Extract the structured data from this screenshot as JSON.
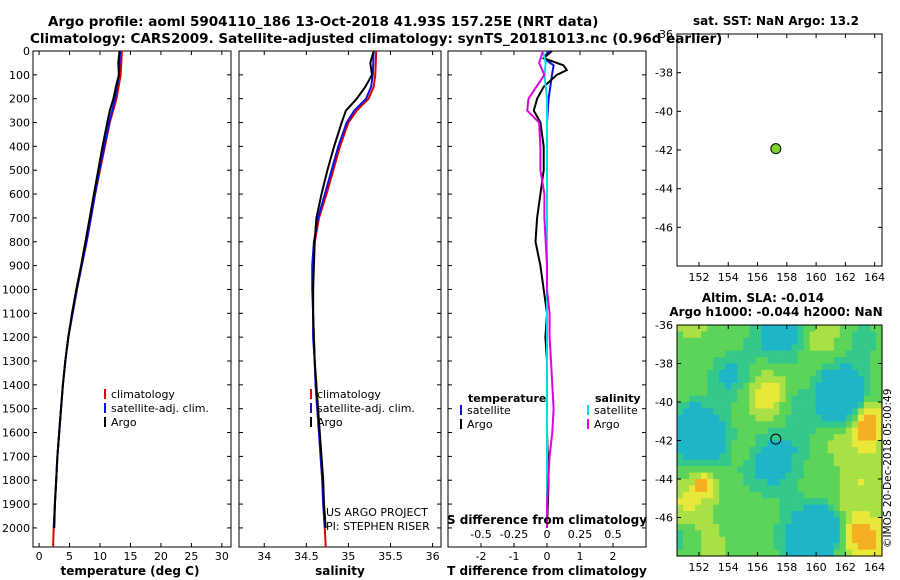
{
  "header": {
    "line1": "Argo profile: aoml 5904110_186 13-Oct-2018 41.93S 157.25E (NRT data)",
    "line2": "Climatology: CARS2009. Satellite-adjusted climatology: synTS_20181013.nc (0.96d earlier)"
  },
  "credits": {
    "project": "US ARGO PROJECT",
    "pi": "PI: STEPHEN RISER",
    "imos_stamp": "©IMOS 20-Dec-2018 05:00:49"
  },
  "colors": {
    "climatology": "#e00000",
    "satellite": "#1010e0",
    "argo": "#000000",
    "sal_satellite": "#00e0e0",
    "sal_argo": "#e000e0",
    "argo_marker": "#7fd22a"
  },
  "chart_data": [
    {
      "id": "temperature",
      "type": "line",
      "xlabel": "temperature (deg C)",
      "xlim": [
        -1,
        31.5
      ],
      "ylim": [
        2080,
        0
      ],
      "x_ticks": [
        0,
        5,
        10,
        15,
        20,
        25,
        30
      ],
      "x_tick_labels": [
        "0",
        "5",
        "10",
        "15",
        "20",
        "25",
        "30"
      ],
      "y_ticks": [
        0,
        100,
        200,
        300,
        400,
        500,
        600,
        700,
        800,
        900,
        1000,
        1100,
        1200,
        1300,
        1400,
        1500,
        1600,
        1700,
        1800,
        1900,
        2000
      ],
      "y_tick_labels": [
        "0",
        "100",
        "200",
        "300",
        "400",
        "500",
        "600",
        "700",
        "800",
        "900",
        "1000",
        "1100",
        "1200",
        "1300",
        "1400",
        "1500",
        "1600",
        "1700",
        "1800",
        "1900",
        "2000"
      ],
      "legend": [
        "climatology",
        "satellite-adj. clim.",
        "Argo"
      ],
      "series": [
        {
          "name": "climatology",
          "color_key": "climatology",
          "depth": [
            0,
            100,
            200,
            300,
            400,
            500,
            600,
            700,
            800,
            900,
            1000,
            1100,
            1200,
            1300,
            1400,
            1500,
            1600,
            1700,
            1800,
            1900,
            2000,
            2080
          ],
          "values": [
            13.6,
            13.4,
            12.7,
            11.6,
            10.8,
            10.0,
            9.2,
            8.5,
            7.8,
            7.0,
            6.2,
            5.5,
            4.8,
            4.3,
            3.9,
            3.6,
            3.3,
            3.0,
            2.8,
            2.6,
            2.4,
            2.3
          ]
        },
        {
          "name": "satellite-adj. clim.",
          "color_key": "satellite",
          "depth": [
            0,
            100,
            200,
            300,
            400,
            500,
            600,
            700,
            800,
            900,
            1000,
            1100,
            1200,
            1300,
            1400,
            1500,
            1600,
            1700,
            1800,
            1900,
            2000
          ],
          "values": [
            13.3,
            13.1,
            12.5,
            11.5,
            10.7,
            9.9,
            9.2,
            8.5,
            7.8,
            7.0,
            6.2,
            5.5,
            4.8,
            4.3,
            3.9,
            3.6,
            3.3,
            3.0,
            2.8,
            2.6,
            2.4
          ]
        },
        {
          "name": "Argo",
          "color_key": "argo",
          "depth": [
            0,
            50,
            100,
            150,
            200,
            250,
            300,
            400,
            500,
            600,
            700,
            800,
            900,
            1000,
            1100,
            1200,
            1300,
            1400,
            1500,
            1600,
            1700,
            1800,
            1900,
            2000
          ],
          "values": [
            13.2,
            13.0,
            13.1,
            12.6,
            12.2,
            11.6,
            11.2,
            10.4,
            9.7,
            9.0,
            8.3,
            7.6,
            6.9,
            6.1,
            5.4,
            4.8,
            4.3,
            3.9,
            3.6,
            3.3,
            3.0,
            2.8,
            2.6,
            2.5
          ]
        }
      ]
    },
    {
      "id": "salinity",
      "type": "line",
      "xlabel": "salinity",
      "xlim": [
        33.7,
        36.1
      ],
      "ylim": [
        2080,
        0
      ],
      "x_ticks": [
        34,
        34.5,
        35,
        35.5,
        36
      ],
      "x_tick_labels": [
        "34",
        "34.5",
        "35",
        "35.5",
        "36"
      ],
      "legend": [
        "climatology",
        "satellite-adj. clim.",
        "Argo"
      ],
      "series": [
        {
          "name": "climatology",
          "color_key": "climatology",
          "depth": [
            0,
            100,
            150,
            200,
            250,
            300,
            400,
            500,
            600,
            700,
            800,
            900,
            1000,
            1100,
            1200,
            1300,
            1400,
            1500,
            1600,
            1700,
            1800,
            1900,
            2000,
            2080
          ],
          "values": [
            35.33,
            35.32,
            35.3,
            35.24,
            35.1,
            35.0,
            34.9,
            34.82,
            34.74,
            34.65,
            34.6,
            34.58,
            34.58,
            34.58,
            34.59,
            34.6,
            34.61,
            34.63,
            34.65,
            34.67,
            34.69,
            34.7,
            34.72,
            34.73
          ]
        },
        {
          "name": "satellite-adj. clim.",
          "color_key": "satellite",
          "depth": [
            0,
            100,
            150,
            200,
            250,
            300,
            400,
            500,
            600,
            700,
            800,
            900,
            1000,
            1100,
            1200,
            1300,
            1400,
            1500,
            1600,
            1700,
            1800,
            1900,
            2000
          ],
          "values": [
            35.3,
            35.29,
            35.27,
            35.21,
            35.07,
            34.98,
            34.88,
            34.8,
            34.72,
            34.64,
            34.59,
            34.57,
            34.57,
            34.58,
            34.58,
            34.6,
            34.61,
            34.63,
            34.65,
            34.67,
            34.69,
            34.7,
            34.72
          ]
        },
        {
          "name": "Argo",
          "color_key": "argo",
          "depth": [
            0,
            50,
            100,
            150,
            200,
            250,
            300,
            400,
            500,
            600,
            700,
            800,
            900,
            1000,
            1100,
            1200,
            1300,
            1400,
            1500,
            1600,
            1700,
            1800,
            1900,
            2000
          ],
          "values": [
            35.3,
            35.26,
            35.28,
            35.2,
            35.1,
            34.97,
            34.92,
            34.83,
            34.75,
            34.68,
            34.62,
            34.6,
            34.59,
            34.58,
            34.58,
            34.59,
            34.6,
            34.62,
            34.64,
            34.66,
            34.68,
            34.7,
            34.71,
            34.73
          ]
        }
      ]
    },
    {
      "id": "difference",
      "type": "line",
      "xlabel": "T difference from climatology",
      "title_bottom": "S difference from climatology",
      "xlim": [
        -3,
        3
      ],
      "ylim": [
        2080,
        0
      ],
      "x_ticks": [
        -2,
        -1,
        0,
        1,
        2
      ],
      "x_tick_labels": [
        "-2",
        "-1",
        "0",
        "1",
        "2"
      ],
      "s_ticks": [
        -0.5,
        -0.25,
        0,
        0.25,
        0.5
      ],
      "s_tick_labels": [
        "-0.5",
        "-0.25",
        "0",
        "0.25",
        "0.5"
      ],
      "s_range": [
        -0.75,
        0.75
      ],
      "legend_left_title": "temperature",
      "legend_right_title": "salinity",
      "legend_left": [
        "satellite",
        "Argo"
      ],
      "legend_right": [
        "satellite",
        "Argo"
      ],
      "series": [
        {
          "name": "T satellite",
          "color_key": "satellite",
          "depth": [
            0,
            30,
            60,
            100,
            150,
            200,
            300,
            400,
            500,
            600,
            800,
            1000,
            1200,
            1500,
            1800,
            2000
          ],
          "values": [
            0.05,
            -0.1,
            0.2,
            0.15,
            0.1,
            0.05,
            0.0,
            0.0,
            0.0,
            0.0,
            0.0,
            0.0,
            0.0,
            0.0,
            0.0,
            0.0
          ]
        },
        {
          "name": "T Argo",
          "color_key": "argo",
          "depth": [
            0,
            30,
            60,
            80,
            100,
            150,
            200,
            250,
            300,
            400,
            500,
            600,
            700,
            800,
            900,
            1000,
            1100,
            1200,
            1300,
            1400,
            1500,
            1600,
            1800,
            2000
          ],
          "values": [
            0.15,
            -0.1,
            0.5,
            0.6,
            0.3,
            -0.1,
            -0.3,
            -0.4,
            -0.2,
            -0.1,
            -0.1,
            -0.2,
            -0.3,
            -0.35,
            -0.2,
            -0.1,
            0.0,
            -0.05,
            0.0,
            0.0,
            0.0,
            0.0,
            0.05,
            0.0
          ]
        },
        {
          "name": "S satellite",
          "color_key": "sal_satellite",
          "depth": [
            0,
            50,
            100,
            200,
            300,
            500,
            800,
            1000,
            1500,
            2000
          ],
          "values": [
            -0.03,
            -0.01,
            -0.02,
            0.0,
            0.0,
            0.0,
            0.0,
            0.0,
            0.0,
            0.0
          ]
        },
        {
          "name": "S Argo",
          "color_key": "sal_argo",
          "depth": [
            0,
            50,
            100,
            150,
            200,
            250,
            300,
            400,
            500,
            600,
            700,
            800,
            900,
            1000,
            1100,
            1200,
            1300,
            1400,
            1500,
            1600,
            1700,
            1800,
            1900,
            2000
          ],
          "values": [
            -0.03,
            -0.06,
            -0.02,
            -0.08,
            -0.14,
            -0.15,
            -0.06,
            -0.05,
            -0.05,
            -0.02,
            -0.02,
            -0.01,
            0.0,
            0.0,
            0.02,
            0.02,
            0.03,
            0.04,
            0.05,
            0.04,
            0.02,
            0.01,
            0.0,
            0.0
          ]
        }
      ]
    },
    {
      "id": "sst_map",
      "type": "scatter",
      "title": "sat. SST: NaN Argo: 13.2",
      "xlim": [
        150.5,
        164.5
      ],
      "ylim": [
        -48,
        -36
      ],
      "x_ticks": [
        152,
        154,
        156,
        158,
        160,
        162,
        164
      ],
      "y_ticks": [
        -36,
        -38,
        -40,
        -42,
        -44,
        -46
      ],
      "x_tick_labels": [
        "152",
        "154",
        "156",
        "158",
        "160",
        "162",
        "164"
      ],
      "y_tick_labels": [
        "-36",
        "-38",
        "-40",
        "-42",
        "-44",
        "-46"
      ],
      "points": [
        {
          "lon": 157.25,
          "lat": -41.93
        }
      ]
    },
    {
      "id": "sla_map",
      "type": "heatmap",
      "title_line1": "Altim. SLA: -0.014",
      "title_line2": "Argo h1000: -0.044 h2000: NaN",
      "xlim": [
        150.5,
        164.5
      ],
      "ylim": [
        -48,
        -36
      ],
      "x_ticks": [
        152,
        154,
        156,
        158,
        160,
        162,
        164
      ],
      "y_ticks": [
        -36,
        -38,
        -40,
        -42,
        -44,
        -46
      ],
      "x_tick_labels": [
        "152",
        "154",
        "156",
        "158",
        "160",
        "162",
        "164"
      ],
      "y_tick_labels": [
        "-36",
        "-38",
        "-40",
        "-42",
        "-44",
        "-46"
      ],
      "points": [
        {
          "lon": 157.25,
          "lat": -41.93
        }
      ]
    }
  ]
}
